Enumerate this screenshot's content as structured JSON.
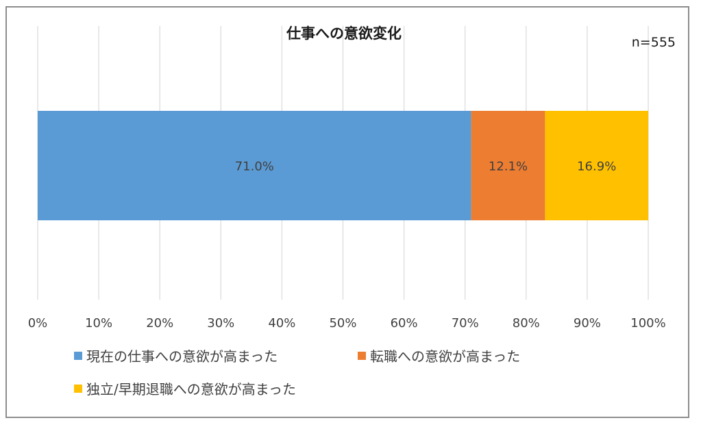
{
  "chart_data": {
    "type": "bar",
    "orientation": "horizontal",
    "stacked": true,
    "title": "仕事への意欲変化",
    "note": "n=555",
    "xlim": [
      0,
      100
    ],
    "x_ticks": [
      0,
      10,
      20,
      30,
      40,
      50,
      60,
      70,
      80,
      90,
      100
    ],
    "tick_labels": [
      "0%",
      "10%",
      "20%",
      "30%",
      "40%",
      "50%",
      "60%",
      "70%",
      "80%",
      "90%",
      "100%"
    ],
    "grid": true,
    "legend_position": "bottom",
    "series": [
      {
        "name": "現在の仕事への意欲が高まった",
        "value": 71.0,
        "label": "71.0%",
        "color": "#5B9BD5"
      },
      {
        "name": "転職への意欲が高まった",
        "value": 12.1,
        "label": "12.1%",
        "color": "#ED7D31"
      },
      {
        "name": "独立/早期退職への意欲が高まった",
        "value": 16.9,
        "label": "16.9%",
        "color": "#FFC000"
      }
    ]
  }
}
